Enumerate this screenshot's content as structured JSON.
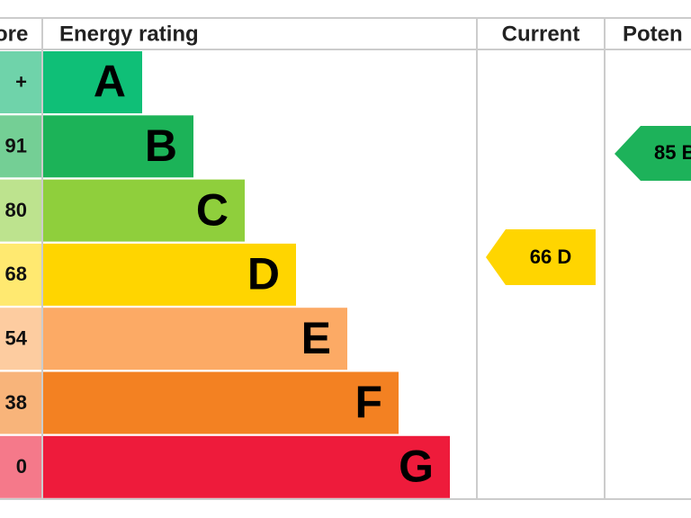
{
  "header": {
    "score": "ore",
    "rating": "Energy rating",
    "current": "Current",
    "potential": "Poten"
  },
  "bands": [
    {
      "score": "+",
      "letter": "A"
    },
    {
      "score": "91",
      "letter": "B"
    },
    {
      "score": "80",
      "letter": "C"
    },
    {
      "score": "68",
      "letter": "D"
    },
    {
      "score": "54",
      "letter": "E"
    },
    {
      "score": "38",
      "letter": "F"
    },
    {
      "score": "0",
      "letter": "G"
    }
  ],
  "current": {
    "label": "66 D"
  },
  "potential": {
    "label": "85 B"
  }
}
